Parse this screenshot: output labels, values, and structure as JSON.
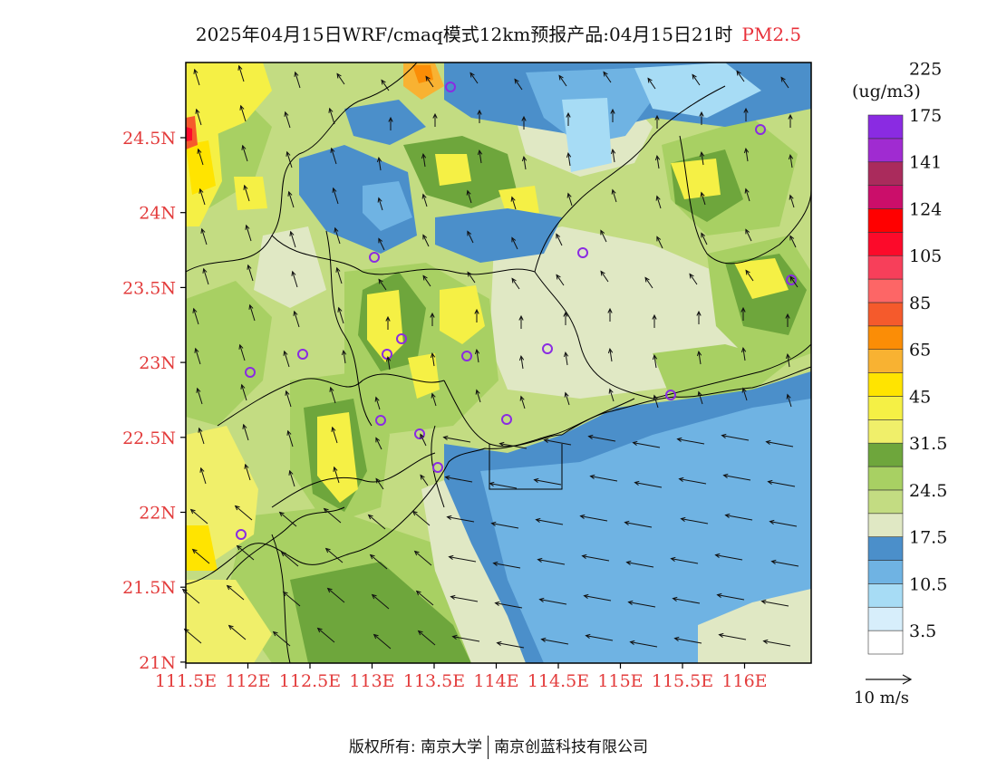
{
  "title": {
    "main": "2025年04月15日WRF/cmaq模式12km预报产品:04月15日21时",
    "variable": "PM2.5"
  },
  "map": {
    "lat_labels": [
      "24.5N",
      "24N",
      "23.5N",
      "23N",
      "22.5N",
      "22N",
      "21.5N",
      "21N"
    ],
    "lon_labels": [
      "111.5E",
      "112E",
      "112.5E",
      "113E",
      "113.5E",
      "114E",
      "114.5E",
      "115E",
      "115.5E",
      "116E"
    ]
  },
  "colorbar": {
    "unit": "(ug/m3)",
    "colors": [
      "#ffffff",
      "#d7eefb",
      "#a7dcf5",
      "#6fb3e3",
      "#4b8fca",
      "#e0e8c4",
      "#c3dc82",
      "#a8d063",
      "#6ea63c",
      "#f0ef6a",
      "#f5f045",
      "#ffe400",
      "#f8b232",
      "#fb8d06",
      "#f55a2c",
      "#fd6666",
      "#f73f5a",
      "#fc0a2a",
      "#ff0000",
      "#cb0e6a",
      "#aa2b5c",
      "#a02bd1",
      "#8a2be2"
    ],
    "labels": [
      "3.5",
      "10.5",
      "17.5",
      "24.5",
      "31.5",
      "45",
      "65",
      "85",
      "105",
      "124",
      "141",
      "175",
      "225"
    ]
  },
  "wind_reference": {
    "label": "10 m/s"
  },
  "copyright": {
    "left": "版权所有: 南京大学",
    "right": "南京创蓝科技有限公司"
  },
  "colors": {
    "sea": "#6fb3e3",
    "coast_sea": "#4b8fca",
    "axis_label": "#e33c3c",
    "marker": "#8a2be2"
  }
}
